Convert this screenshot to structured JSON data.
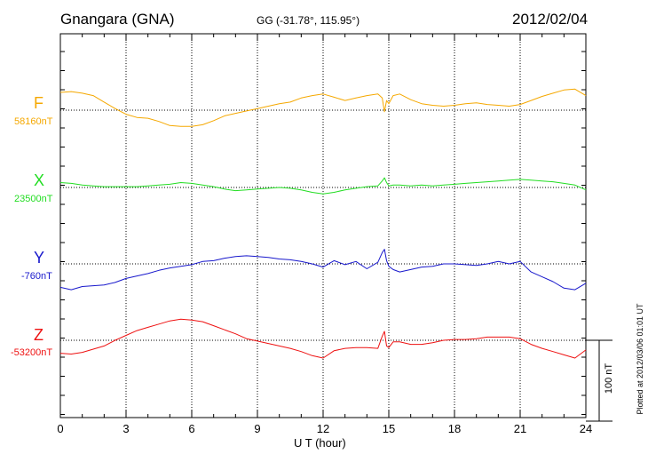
{
  "header": {
    "station": "Gnangara (GNA)",
    "coords": "GG (-31.78°, 115.95°)",
    "date": "2012/02/04"
  },
  "side_note": "Plotted at 2012/03/06 01:01 UT",
  "scale_label": "100 nT",
  "chart_data": {
    "type": "line",
    "xlabel": "U T (hour)",
    "xlim": [
      0,
      24
    ],
    "x_ticks": [
      "0",
      "3",
      "6",
      "9",
      "12",
      "15",
      "18",
      "21",
      "24"
    ],
    "grid": true,
    "scale_bar_nT": 100,
    "series": [
      {
        "name": "F",
        "baseline_label": "58160nT",
        "baseline_nT": 58160,
        "color": "#f5a800",
        "x": [
          0,
          0.5,
          1,
          1.5,
          2,
          2.5,
          3,
          3.5,
          4,
          4.5,
          5,
          5.5,
          6,
          6.5,
          7,
          7.5,
          8,
          8.5,
          9,
          9.5,
          10,
          10.5,
          11,
          11.5,
          12,
          12.5,
          13,
          13.5,
          14,
          14.5,
          14.7,
          14.8,
          14.9,
          15.0,
          15.2,
          15.5,
          16,
          16.5,
          17,
          17.5,
          18,
          18.5,
          19,
          19.5,
          20,
          20.5,
          21,
          21.5,
          22,
          22.5,
          23,
          23.5,
          24
        ],
        "y": [
          58182,
          58183,
          58181,
          58178,
          58170,
          58162,
          58155,
          58151,
          58150,
          58146,
          58141,
          58140,
          58140,
          58142,
          58147,
          58153,
          58156,
          58159,
          58162,
          58165,
          58168,
          58170,
          58175,
          58178,
          58180,
          58176,
          58172,
          58175,
          58178,
          58180,
          58175,
          58158,
          58172,
          58168,
          58178,
          58180,
          58173,
          58168,
          58166,
          58165,
          58166,
          58168,
          58169,
          58167,
          58166,
          58165,
          58167,
          58172,
          58177,
          58181,
          58185,
          58186,
          58178
        ]
      },
      {
        "name": "X",
        "baseline_label": "23500nT",
        "baseline_nT": 23500,
        "color": "#22dd22",
        "x": [
          0,
          0.5,
          1,
          1.5,
          2,
          2.5,
          3,
          3.5,
          4,
          4.5,
          5,
          5.5,
          6,
          6.5,
          7,
          7.5,
          8,
          8.5,
          9,
          9.5,
          10,
          10.5,
          11,
          11.5,
          12,
          12.5,
          13,
          13.5,
          14,
          14.5,
          14.7,
          14.8,
          14.9,
          15.0,
          15.2,
          15.5,
          16,
          16.5,
          17,
          17.5,
          18,
          18.5,
          19,
          19.5,
          20,
          20.5,
          21,
          21.5,
          22,
          22.5,
          23,
          23.5,
          24
        ],
        "y": [
          23506,
          23505,
          23503,
          23502,
          23501,
          23501,
          23501,
          23501,
          23502,
          23503,
          23504,
          23506,
          23505,
          23503,
          23501,
          23498,
          23496,
          23497,
          23498,
          23499,
          23500,
          23499,
          23497,
          23494,
          23492,
          23494,
          23497,
          23499,
          23501,
          23502,
          23508,
          23512,
          23506,
          23502,
          23503,
          23503,
          23502,
          23503,
          23502,
          23503,
          23504,
          23505,
          23506,
          23507,
          23508,
          23509,
          23510,
          23509,
          23508,
          23507,
          23505,
          23503,
          23497
        ]
      },
      {
        "name": "Y",
        "baseline_label": "-760nT",
        "baseline_nT": -760,
        "color": "#1818cc",
        "x": [
          0,
          0.5,
          1,
          1.5,
          2,
          2.5,
          3,
          3.5,
          4,
          4.5,
          5,
          5.5,
          6,
          6.5,
          7,
          7.5,
          8,
          8.5,
          9,
          9.5,
          10,
          10.5,
          11,
          11.5,
          12,
          12.5,
          13,
          13.5,
          14,
          14.5,
          14.7,
          14.8,
          14.9,
          15.0,
          15.2,
          15.5,
          16,
          16.5,
          17,
          17.5,
          18,
          18.5,
          19,
          19.5,
          20,
          20.5,
          21,
          21.5,
          22,
          22.5,
          23,
          23.5,
          24
        ],
        "y": [
          -789,
          -792,
          -788,
          -787,
          -786,
          -783,
          -778,
          -775,
          -772,
          -768,
          -765,
          -763,
          -761,
          -757,
          -756,
          -753,
          -751,
          -750,
          -751,
          -752,
          -754,
          -755,
          -757,
          -760,
          -764,
          -756,
          -761,
          -757,
          -766,
          -758,
          -746,
          -742,
          -756,
          -763,
          -767,
          -770,
          -767,
          -764,
          -763,
          -760,
          -760,
          -761,
          -762,
          -760,
          -757,
          -760,
          -757,
          -770,
          -776,
          -782,
          -790,
          -792,
          -784
        ]
      },
      {
        "name": "Z",
        "baseline_label": "-53200nT",
        "baseline_nT": -53200,
        "color": "#ee1111",
        "x": [
          0,
          0.5,
          1,
          1.5,
          2,
          2.5,
          3,
          3.5,
          4,
          4.5,
          5,
          5.5,
          6,
          6.5,
          7,
          7.5,
          8,
          8.5,
          9,
          9.5,
          10,
          10.5,
          11,
          11.5,
          12,
          12.5,
          13,
          13.5,
          14,
          14.5,
          14.7,
          14.8,
          14.9,
          15.0,
          15.2,
          15.5,
          16,
          16.5,
          17,
          17.5,
          18,
          18.5,
          19,
          19.5,
          20,
          20.5,
          21,
          21.5,
          22,
          22.5,
          23,
          23.5,
          24
        ],
        "y": [
          -53216,
          -53217,
          -53215,
          -53211,
          -53207,
          -53200,
          -53194,
          -53188,
          -53184,
          -53180,
          -53176,
          -53174,
          -53175,
          -53177,
          -53182,
          -53187,
          -53192,
          -53198,
          -53201,
          -53204,
          -53207,
          -53210,
          -53214,
          -53219,
          -53222,
          -53213,
          -53210,
          -53209,
          -53209,
          -53210,
          -53195,
          -53189,
          -53207,
          -53209,
          -53202,
          -53202,
          -53205,
          -53205,
          -53203,
          -53200,
          -53199,
          -53199,
          -53198,
          -53196,
          -53196,
          -53196,
          -53198,
          -53205,
          -53210,
          -53214,
          -53218,
          -53222,
          -53212
        ]
      }
    ]
  }
}
